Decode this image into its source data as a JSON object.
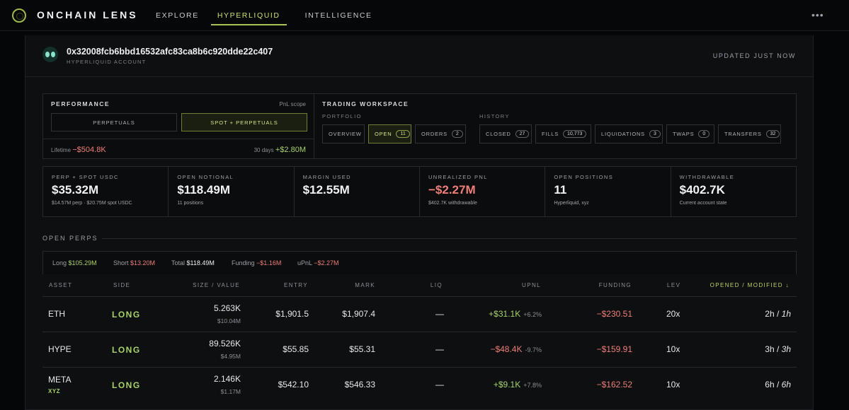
{
  "brand": "ONCHAIN LENS",
  "nav": [
    {
      "label": "EXPLORE",
      "active": false
    },
    {
      "label": "HYPERLIQUID",
      "active": true
    },
    {
      "label": "INTELLIGENCE",
      "active": false
    }
  ],
  "more_label": "•••",
  "account": {
    "address": "0x32008fcb6bbd16532afc83ca8b6c920dde22c407",
    "type_label": "HYPERLIQUID ACCOUNT",
    "updated": "UPDATED JUST NOW"
  },
  "performance": {
    "title": "PERFORMANCE",
    "scope_label": "PnL scope",
    "btn_perpetuals": "PERPETUALS",
    "btn_spot_perps": "SPOT + PERPETUALS",
    "lifetime_label": "Lifetime",
    "lifetime_value": "−$504.8K",
    "days30_label": "30 days",
    "days30_value": "+$2.80M"
  },
  "workspace": {
    "title": "TRADING WORKSPACE",
    "portfolio_label": "PORTFOLIO",
    "history_label": "HISTORY",
    "overview": "OVERVIEW",
    "open": {
      "label": "OPEN",
      "count": "11"
    },
    "orders": {
      "label": "ORDERS",
      "count": "2"
    },
    "closed": {
      "label": "CLOSED",
      "count": "27"
    },
    "fills": {
      "label": "FILLS",
      "count": "10,773"
    },
    "liquidations": {
      "label": "LIQUIDATIONS",
      "count": "3"
    },
    "twaps": {
      "label": "TWAPS",
      "count": "0"
    },
    "transfers": {
      "label": "TRANSFERS",
      "count": "32"
    }
  },
  "stats": [
    {
      "label": "PERP + SPOT USDC",
      "value": "$35.32M",
      "sub": "$14.57M perp · $20.75M spot USDC"
    },
    {
      "label": "OPEN NOTIONAL",
      "value": "$118.49M",
      "sub": "11 positions"
    },
    {
      "label": "MARGIN USED",
      "value": "$12.55M",
      "sub": ""
    },
    {
      "label": "UNREALIZED PNL",
      "value": "−$2.27M",
      "sub": "$402.7K withdrawable"
    },
    {
      "label": "OPEN POSITIONS",
      "value": "11",
      "sub": "Hyperliquid, xyz"
    },
    {
      "label": "WITHDRAWABLE",
      "value": "$402.7K",
      "sub": "Current account state"
    }
  ],
  "open_perps": {
    "title": "OPEN PERPS",
    "long_label": "Long",
    "long_value": "$105.29M",
    "short_label": "Short",
    "short_value": "$13.20M",
    "total_label": "Total",
    "total_value": "$118.49M",
    "funding_label": "Funding",
    "funding_value": "−$1.16M",
    "upnl_label": "uPnL",
    "upnl_value": "−$2.27M"
  },
  "table": {
    "headers": {
      "asset": "ASSET",
      "side": "SIDE",
      "size": "SIZE / VALUE",
      "entry": "ENTRY",
      "mark": "MARK",
      "liq": "LIQ",
      "upnl": "UPNL",
      "funding": "FUNDING",
      "lev": "LEV",
      "opened": "OPENED / MODIFIED ↓"
    },
    "rows": [
      {
        "asset": "ETH",
        "dex": "",
        "side": "LONG",
        "size": "5.263K",
        "value": "$10.04M",
        "entry": "$1,901.5",
        "mark": "$1,907.4",
        "liq": "—",
        "upnl": "+$31.1K",
        "upnl_pct": "+6.2%",
        "upnl_sign": "pos",
        "funding": "−$230.51",
        "lev": "20x",
        "opened": "2h",
        "modified": "1h"
      },
      {
        "asset": "HYPE",
        "dex": "",
        "side": "LONG",
        "size": "89.526K",
        "value": "$4.95M",
        "entry": "$55.85",
        "mark": "$55.31",
        "liq": "—",
        "upnl": "−$48.4K",
        "upnl_pct": "-9.7%",
        "upnl_sign": "neg",
        "funding": "−$159.91",
        "lev": "10x",
        "opened": "3h",
        "modified": "3h"
      },
      {
        "asset": "META",
        "dex": "XYZ",
        "side": "LONG",
        "size": "2.146K",
        "value": "$1.17M",
        "entry": "$542.10",
        "mark": "$546.33",
        "liq": "—",
        "upnl": "+$9.1K",
        "upnl_pct": "+7.8%",
        "upnl_sign": "pos",
        "funding": "−$162.52",
        "lev": "10x",
        "opened": "6h",
        "modified": "6h"
      }
    ]
  }
}
